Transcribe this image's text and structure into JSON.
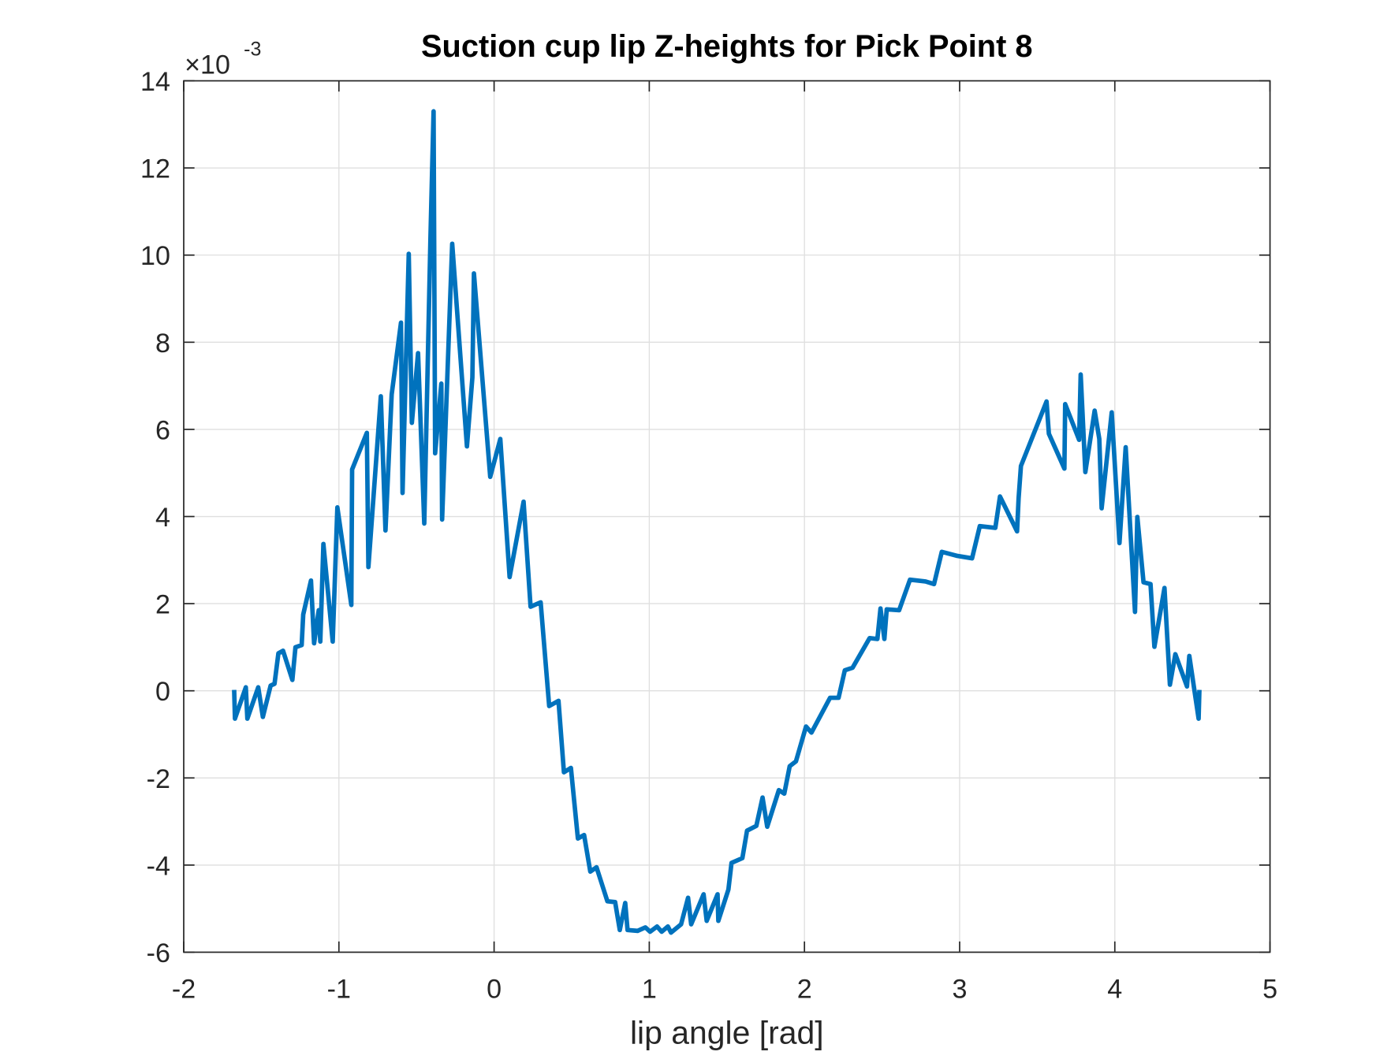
{
  "chart_data": {
    "type": "line",
    "title": "Suction cup lip Z-heights for Pick Point 8",
    "x_label": "lip angle [rad]",
    "y_multiplier": "×10",
    "y_multiplier_exponent": "-3",
    "color": "#0072bd",
    "grid": true,
    "xlim": [
      -2,
      5
    ],
    "xticks": [
      -2,
      -1,
      0,
      1,
      2,
      3,
      4,
      5
    ],
    "ylim": [
      -6,
      14
    ],
    "yticks": [
      -6,
      -4,
      -2,
      0,
      2,
      4,
      6,
      8,
      10,
      12,
      14
    ],
    "x": [
      -1.675,
      -1.67,
      -1.6,
      -1.59,
      -1.52,
      -1.49,
      -1.44,
      -1.415,
      -1.39,
      -1.36,
      -1.3,
      -1.28,
      -1.24,
      -1.23,
      -1.18,
      -1.16,
      -1.13,
      -1.12,
      -1.1,
      -1.04,
      -1.01,
      -0.92,
      -0.915,
      -0.82,
      -0.81,
      -0.73,
      -0.7,
      -0.66,
      -0.6,
      -0.59,
      -0.55,
      -0.53,
      -0.49,
      -0.45,
      -0.41,
      -0.39,
      -0.38,
      -0.34,
      -0.335,
      -0.27,
      -0.175,
      -0.14,
      -0.13,
      -0.025,
      0.04,
      0.1,
      0.19,
      0.235,
      0.3,
      0.355,
      0.415,
      0.45,
      0.495,
      0.54,
      0.58,
      0.62,
      0.66,
      0.73,
      0.78,
      0.81,
      0.845,
      0.86,
      0.925,
      0.975,
      1.005,
      1.05,
      1.08,
      1.12,
      1.14,
      1.205,
      1.25,
      1.27,
      1.35,
      1.37,
      1.44,
      1.445,
      1.51,
      1.53,
      1.6,
      1.63,
      1.69,
      1.73,
      1.76,
      1.835,
      1.87,
      1.905,
      1.945,
      2.01,
      2.045,
      2.165,
      2.22,
      2.26,
      2.31,
      2.42,
      2.47,
      2.49,
      2.515,
      2.53,
      2.61,
      2.68,
      2.78,
      2.835,
      2.885,
      2.98,
      3.08,
      3.13,
      3.23,
      3.26,
      3.37,
      3.38,
      3.395,
      3.56,
      3.575,
      3.675,
      3.68,
      3.77,
      3.78,
      3.81,
      3.87,
      3.9,
      3.915,
      3.98,
      4.03,
      4.07,
      4.13,
      4.145,
      4.185,
      4.23,
      4.255,
      4.32,
      4.355,
      4.39,
      4.465,
      4.48,
      4.54,
      4.545
    ],
    "values": [
      0.02,
      -0.64,
      0.08,
      -0.64,
      0.08,
      -0.6,
      0.12,
      0.16,
      0.86,
      0.92,
      0.25,
      1.0,
      1.05,
      1.75,
      2.53,
      1.09,
      1.85,
      1.13,
      3.37,
      1.13,
      4.21,
      1.97,
      5.08,
      5.92,
      2.84,
      6.76,
      3.68,
      6.8,
      8.45,
      4.54,
      10.03,
      6.15,
      7.75,
      3.84,
      10.42,
      13.3,
      5.45,
      7.05,
      3.93,
      10.26,
      5.61,
      7.19,
      9.58,
      4.91,
      5.78,
      2.61,
      4.34,
      1.93,
      2.03,
      -0.35,
      -0.23,
      -1.87,
      -1.77,
      -3.39,
      -3.31,
      -4.15,
      -4.05,
      -4.83,
      -4.85,
      -5.49,
      -4.87,
      -5.49,
      -5.51,
      -5.43,
      -5.53,
      -5.41,
      -5.53,
      -5.41,
      -5.55,
      -5.36,
      -4.75,
      -5.36,
      -4.67,
      -5.28,
      -4.67,
      -5.28,
      -4.56,
      -3.95,
      -3.84,
      -3.21,
      -3.1,
      -2.45,
      -3.12,
      -2.28,
      -2.36,
      -1.73,
      -1.62,
      -0.82,
      -0.96,
      -0.16,
      -0.16,
      0.47,
      0.53,
      1.21,
      1.19,
      1.89,
      1.19,
      1.87,
      1.85,
      2.55,
      2.51,
      2.45,
      3.19,
      3.1,
      3.04,
      3.78,
      3.74,
      4.46,
      3.66,
      4.42,
      5.16,
      6.64,
      5.9,
      5.1,
      6.58,
      5.76,
      7.26,
      5.02,
      6.43,
      5.78,
      4.19,
      6.39,
      3.39,
      5.59,
      1.81,
      3.99,
      2.49,
      2.45,
      1.01,
      2.36,
      0.14,
      0.84,
      0.1,
      0.8,
      -0.64,
      0.02
    ]
  }
}
